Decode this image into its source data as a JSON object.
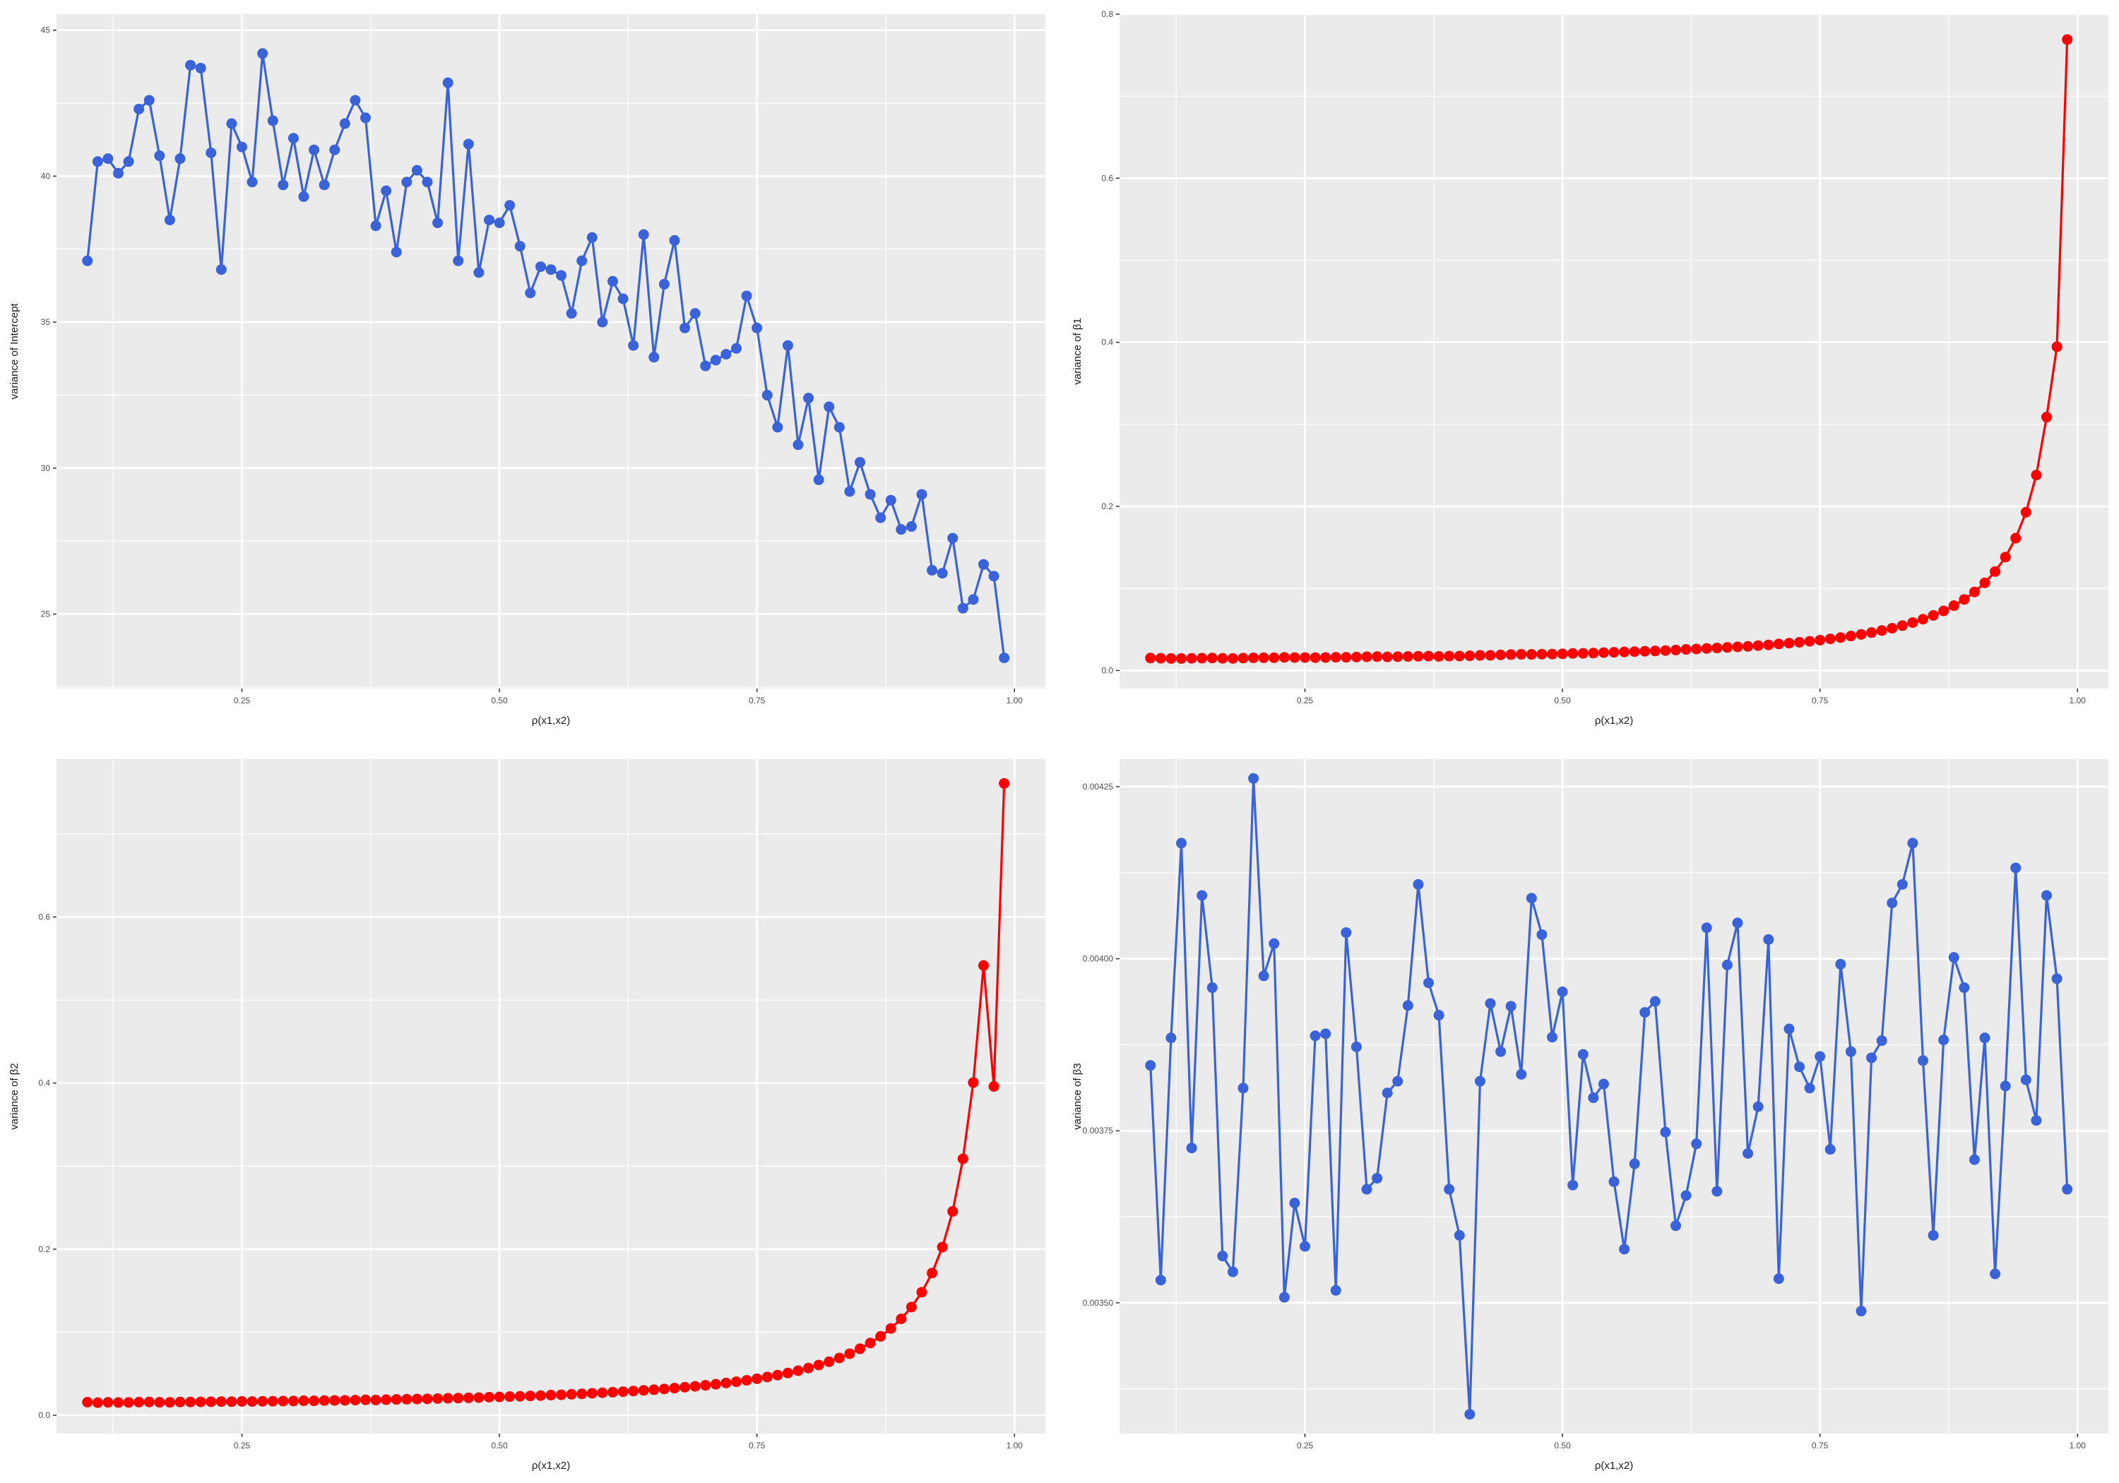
{
  "chart_data": [
    {
      "type": "line",
      "xlabel": "ρ(x1,x2)",
      "ylabel": "variance of Intercept",
      "xlim": [
        0.07,
        1.03
      ],
      "ylim": [
        22.45,
        45.55
      ],
      "x_ticks": [
        0.25,
        0.5,
        0.75,
        1.0
      ],
      "x_tick_labels": [
        "0.25",
        "0.50",
        "0.75",
        "1.00"
      ],
      "y_ticks": [
        25,
        30,
        35,
        40,
        45
      ],
      "y_tick_labels": [
        "25",
        "30",
        "35",
        "40",
        "45"
      ],
      "grid": true,
      "x_start": 0.1,
      "x_step": 0.01,
      "line_color": "#3A62D9",
      "point_color": "#3A62D9",
      "series": [
        {
          "values": [
            37.1,
            40.5,
            40.6,
            40.1,
            40.5,
            42.3,
            42.6,
            40.7,
            38.5,
            40.6,
            43.8,
            43.7,
            40.8,
            36.8,
            41.8,
            41.0,
            39.8,
            44.2,
            41.9,
            39.7,
            41.3,
            39.3,
            40.9,
            39.7,
            40.9,
            41.8,
            42.6,
            42.0,
            38.3,
            39.5,
            37.4,
            39.8,
            40.2,
            39.8,
            38.4,
            43.2,
            37.1,
            41.1,
            36.7,
            38.5,
            38.4,
            39.0,
            37.6,
            36.0,
            36.9,
            36.8,
            36.6,
            35.3,
            37.1,
            37.9,
            35.0,
            36.4,
            35.8,
            34.2,
            38.0,
            33.8,
            36.3,
            37.8,
            34.8,
            35.3,
            33.5,
            33.7,
            33.9,
            34.1,
            35.9,
            34.8,
            32.5,
            31.4,
            34.2,
            30.8,
            32.4,
            29.6,
            32.1,
            31.4,
            29.2,
            30.2,
            29.1,
            28.3,
            28.9,
            27.9,
            28.0,
            29.1,
            26.5,
            26.4,
            27.6,
            25.2,
            25.5,
            26.7,
            26.3,
            23.5
          ]
        }
      ]
    },
    {
      "type": "line",
      "xlabel": "ρ(x1,x2)",
      "ylabel": "variance of β1",
      "xlim": [
        0.07,
        1.03
      ],
      "ylim": [
        -0.022,
        0.8
      ],
      "x_ticks": [
        0.25,
        0.5,
        0.75,
        1.0
      ],
      "x_tick_labels": [
        "0.25",
        "0.50",
        "0.75",
        "1.00"
      ],
      "y_ticks": [
        0.0,
        0.2,
        0.4,
        0.6,
        0.8
      ],
      "y_tick_labels": [
        "0.0",
        "0.2",
        "0.4",
        "0.6",
        "0.8"
      ],
      "grid": true,
      "x_start": 0.1,
      "x_step": 0.01,
      "line_color": "#FF0000",
      "point_color": "#FF0000",
      "series": [
        {
          "values": [
            0.0152,
            0.0149,
            0.0146,
            0.0146,
            0.0148,
            0.015,
            0.0152,
            0.0148,
            0.0147,
            0.0151,
            0.0154,
            0.0155,
            0.0156,
            0.016,
            0.0158,
            0.0158,
            0.0157,
            0.0158,
            0.0161,
            0.0161,
            0.0164,
            0.0167,
            0.0169,
            0.0166,
            0.0168,
            0.0171,
            0.0173,
            0.0175,
            0.0172,
            0.0175,
            0.0176,
            0.0179,
            0.0184,
            0.0185,
            0.019,
            0.0194,
            0.0197,
            0.0196,
            0.0199,
            0.02,
            0.0203,
            0.0208,
            0.0209,
            0.0212,
            0.0218,
            0.0222,
            0.0226,
            0.023,
            0.0234,
            0.0238,
            0.0243,
            0.0249,
            0.0257,
            0.0262,
            0.0269,
            0.0274,
            0.0281,
            0.0288,
            0.0294,
            0.0303,
            0.0312,
            0.0323,
            0.0333,
            0.0344,
            0.0356,
            0.037,
            0.0385,
            0.0401,
            0.042,
            0.044,
            0.0462,
            0.0487,
            0.0515,
            0.0547,
            0.0584,
            0.0625,
            0.0671,
            0.0726,
            0.079,
            0.0866,
            0.0957,
            0.1068,
            0.1206,
            0.1382,
            0.1613,
            0.1929,
            0.2382,
            0.3088,
            0.3946,
            0.769
          ]
        }
      ]
    },
    {
      "type": "line",
      "xlabel": "ρ(x1,x2)",
      "ylabel": "variance of β2",
      "xlim": [
        0.07,
        1.03
      ],
      "ylim": [
        -0.022,
        0.79
      ],
      "x_ticks": [
        0.25,
        0.5,
        0.75,
        1.0
      ],
      "x_tick_labels": [
        "0.25",
        "0.50",
        "0.75",
        "1.00"
      ],
      "y_ticks": [
        0.0,
        0.2,
        0.4,
        0.6
      ],
      "y_tick_labels": [
        "0.0",
        "0.2",
        "0.4",
        "0.6"
      ],
      "grid": true,
      "x_start": 0.1,
      "x_step": 0.01,
      "line_color": "#FF0000",
      "point_color": "#FF0000",
      "series": [
        {
          "values": [
            0.0158,
            0.0152,
            0.0156,
            0.0154,
            0.0155,
            0.0158,
            0.016,
            0.0157,
            0.0156,
            0.016,
            0.016,
            0.0162,
            0.0163,
            0.0165,
            0.0164,
            0.0167,
            0.0166,
            0.0168,
            0.0169,
            0.0171,
            0.0172,
            0.0175,
            0.0174,
            0.0177,
            0.0179,
            0.018,
            0.0183,
            0.0186,
            0.0184,
            0.0188,
            0.0191,
            0.0193,
            0.0196,
            0.0198,
            0.0201,
            0.0205,
            0.0207,
            0.021,
            0.0213,
            0.0218,
            0.0221,
            0.0225,
            0.0229,
            0.0233,
            0.0237,
            0.0243,
            0.0247,
            0.0253,
            0.0258,
            0.0265,
            0.0271,
            0.0278,
            0.0284,
            0.0292,
            0.03,
            0.0308,
            0.0317,
            0.0327,
            0.0338,
            0.0349,
            0.0361,
            0.0374,
            0.0389,
            0.0404,
            0.0421,
            0.044,
            0.0461,
            0.0484,
            0.0509,
            0.0537,
            0.0569,
            0.0605,
            0.0645,
            0.069,
            0.0741,
            0.0801,
            0.087,
            0.095,
            0.1045,
            0.1161,
            0.1303,
            0.1482,
            0.1713,
            0.2025,
            0.2455,
            0.3088,
            0.4006,
            0.5416,
            0.3959,
            0.7608
          ]
        }
      ]
    },
    {
      "type": "line",
      "xlabel": "ρ(x1,x2)",
      "ylabel": "variance of β3",
      "xlim": [
        0.07,
        1.03
      ],
      "ylim": [
        0.00331,
        0.00429
      ],
      "x_ticks": [
        0.25,
        0.5,
        0.75,
        1.0
      ],
      "x_tick_labels": [
        "0.25",
        "0.50",
        "0.75",
        "1.00"
      ],
      "y_ticks": [
        0.0035,
        0.00375,
        0.004,
        0.00425
      ],
      "y_tick_labels": [
        "0.00350",
        "0.00375",
        "0.00400",
        "0.00425"
      ],
      "grid": true,
      "x_start": 0.1,
      "x_step": 0.01,
      "line_color": "#3A62D9",
      "point_color": "#3A62D9",
      "series": [
        {
          "values": [
            0.003845,
            0.003533,
            0.003885,
            0.004168,
            0.003725,
            0.004092,
            0.003958,
            0.003568,
            0.003545,
            0.003812,
            0.004262,
            0.003975,
            0.004022,
            0.003508,
            0.003645,
            0.003582,
            0.003888,
            0.003891,
            0.003518,
            0.004038,
            0.003872,
            0.003665,
            0.003681,
            0.003805,
            0.003822,
            0.003932,
            0.004108,
            0.003965,
            0.003918,
            0.003665,
            0.003598,
            0.003338,
            0.003822,
            0.003935,
            0.003865,
            0.003931,
            0.003832,
            0.004088,
            0.004035,
            0.003886,
            0.003952,
            0.003671,
            0.003861,
            0.003798,
            0.003818,
            0.003676,
            0.003578,
            0.003702,
            0.003922,
            0.003938,
            0.003748,
            0.003612,
            0.003656,
            0.003731,
            0.004045,
            0.003662,
            0.003991,
            0.004052,
            0.003717,
            0.003785,
            0.004028,
            0.003535,
            0.003898,
            0.003843,
            0.003812,
            0.003858,
            0.003723,
            0.003992,
            0.003865,
            0.003488,
            0.003856,
            0.003881,
            0.004081,
            0.004108,
            0.004168,
            0.003852,
            0.003598,
            0.003882,
            0.004002,
            0.003958,
            0.003708,
            0.003885,
            0.003542,
            0.003815,
            0.004132,
            0.003824,
            0.003765,
            0.004092,
            0.003971,
            0.003665
          ]
        }
      ]
    }
  ]
}
